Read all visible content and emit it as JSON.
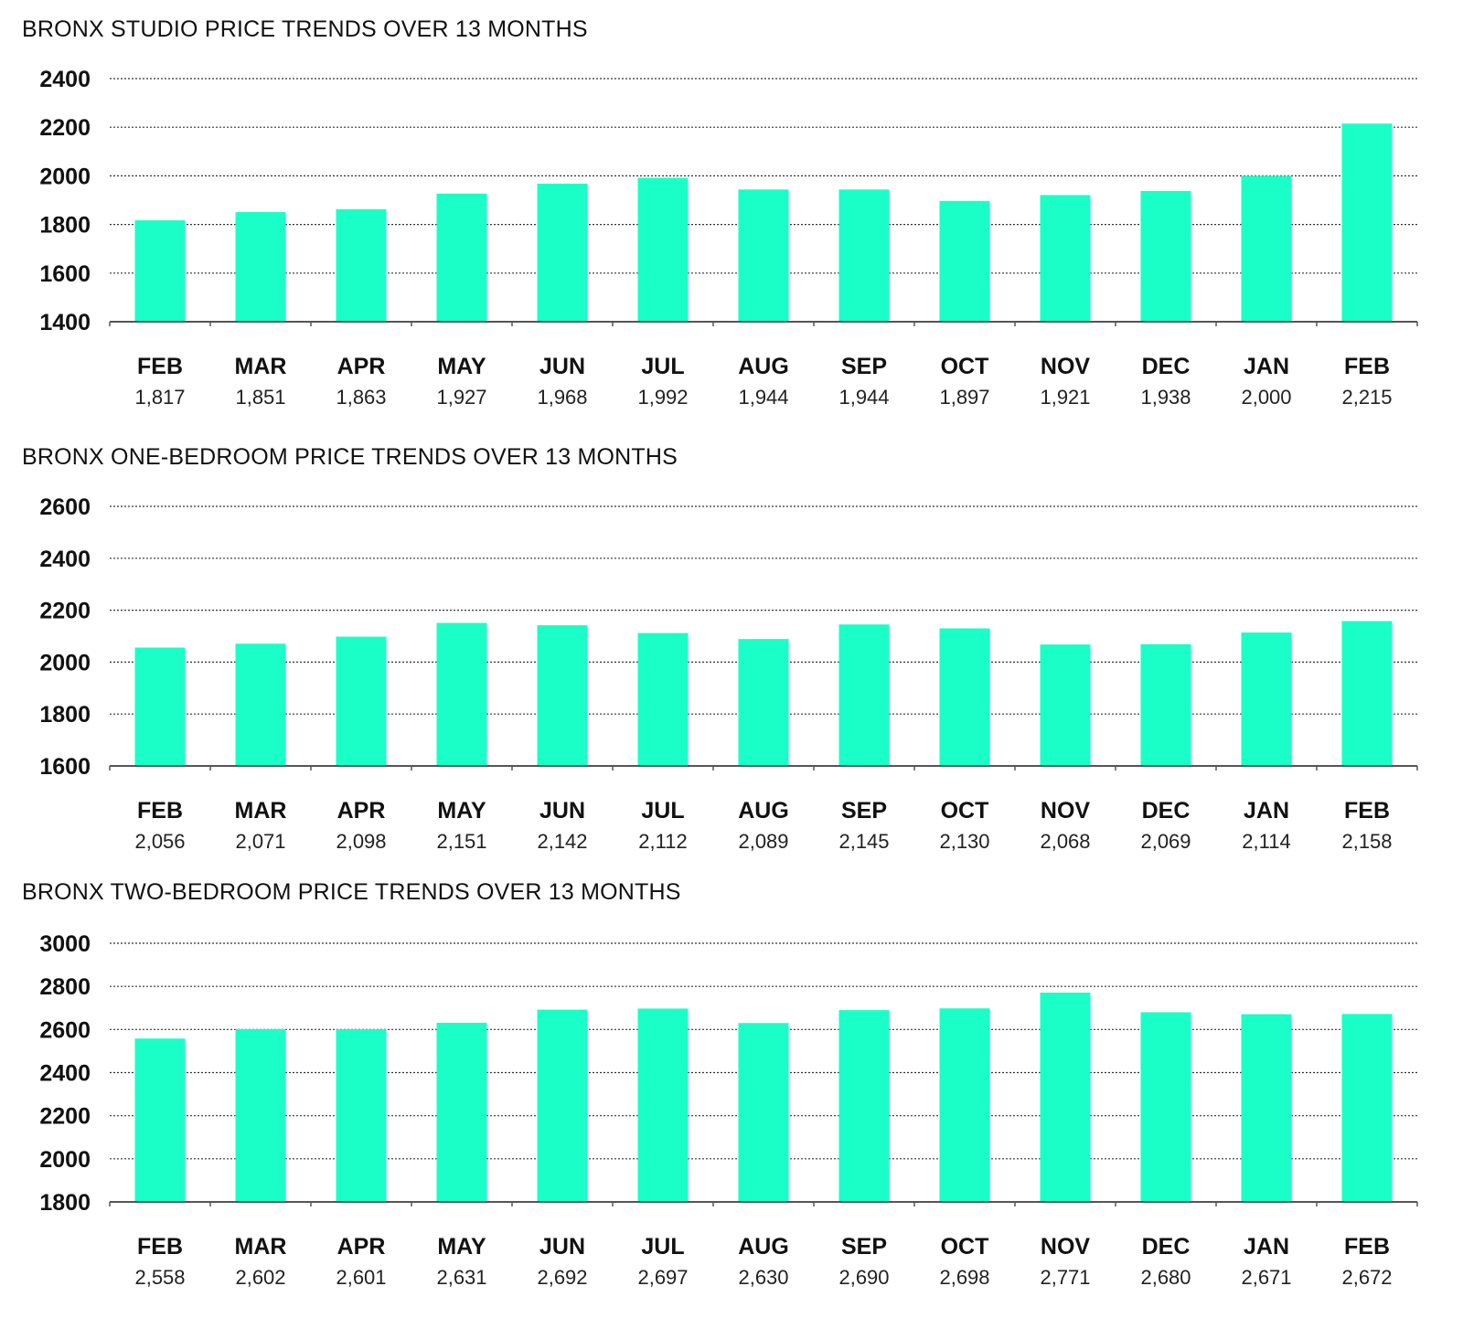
{
  "chart_data": [
    {
      "type": "bar",
      "title": "BRONX STUDIO PRICE TRENDS OVER 13 MONTHS",
      "xlabel": "",
      "ylabel": "",
      "categories": [
        "FEB",
        "MAR",
        "APR",
        "MAY",
        "JUN",
        "JUL",
        "AUG",
        "SEP",
        "OCT",
        "NOV",
        "DEC",
        "JAN",
        "FEB"
      ],
      "values": [
        1817,
        1851,
        1863,
        1927,
        1968,
        1992,
        1944,
        1944,
        1897,
        1921,
        1938,
        2000,
        2215
      ],
      "value_labels": [
        "1,817",
        "1,851",
        "1,863",
        "1,927",
        "1,968",
        "1,992",
        "1,944",
        "1,944",
        "1,897",
        "1,921",
        "1,938",
        "2,000",
        "2,215"
      ],
      "ylim": [
        1400,
        2400
      ],
      "yticks": [
        1400,
        1600,
        1800,
        2000,
        2200,
        2400
      ],
      "grid": true,
      "color": "#1affc8"
    },
    {
      "type": "bar",
      "title": "BRONX ONE-BEDROOM PRICE TRENDS OVER 13 MONTHS",
      "xlabel": "",
      "ylabel": "",
      "categories": [
        "FEB",
        "MAR",
        "APR",
        "MAY",
        "JUN",
        "JUL",
        "AUG",
        "SEP",
        "OCT",
        "NOV",
        "DEC",
        "JAN",
        "FEB"
      ],
      "values": [
        2056,
        2071,
        2098,
        2151,
        2142,
        2112,
        2089,
        2145,
        2130,
        2068,
        2069,
        2114,
        2158
      ],
      "value_labels": [
        "2,056",
        "2,071",
        "2,098",
        "2,151",
        "2,142",
        "2,112",
        "2,089",
        "2,145",
        "2,130",
        "2,068",
        "2,069",
        "2,114",
        "2,158"
      ],
      "ylim": [
        1600,
        2600
      ],
      "yticks": [
        1600,
        1800,
        2000,
        2200,
        2400,
        2600
      ],
      "grid": true,
      "color": "#1affc8"
    },
    {
      "type": "bar",
      "title": "BRONX TWO-BEDROOM PRICE TRENDS OVER 13 MONTHS",
      "xlabel": "",
      "ylabel": "",
      "categories": [
        "FEB",
        "MAR",
        "APR",
        "MAY",
        "JUN",
        "JUL",
        "AUG",
        "SEP",
        "OCT",
        "NOV",
        "DEC",
        "JAN",
        "FEB"
      ],
      "values": [
        2558,
        2602,
        2601,
        2631,
        2692,
        2697,
        2630,
        2690,
        2698,
        2771,
        2680,
        2671,
        2672
      ],
      "value_labels": [
        "2,558",
        "2,602",
        "2,601",
        "2,631",
        "2,692",
        "2,697",
        "2,630",
        "2,690",
        "2,698",
        "2,771",
        "2,680",
        "2,671",
        "2,672"
      ],
      "ylim": [
        1800,
        3000
      ],
      "yticks": [
        1800,
        2000,
        2200,
        2400,
        2600,
        2800,
        3000
      ],
      "grid": true,
      "color": "#1affc8"
    }
  ]
}
